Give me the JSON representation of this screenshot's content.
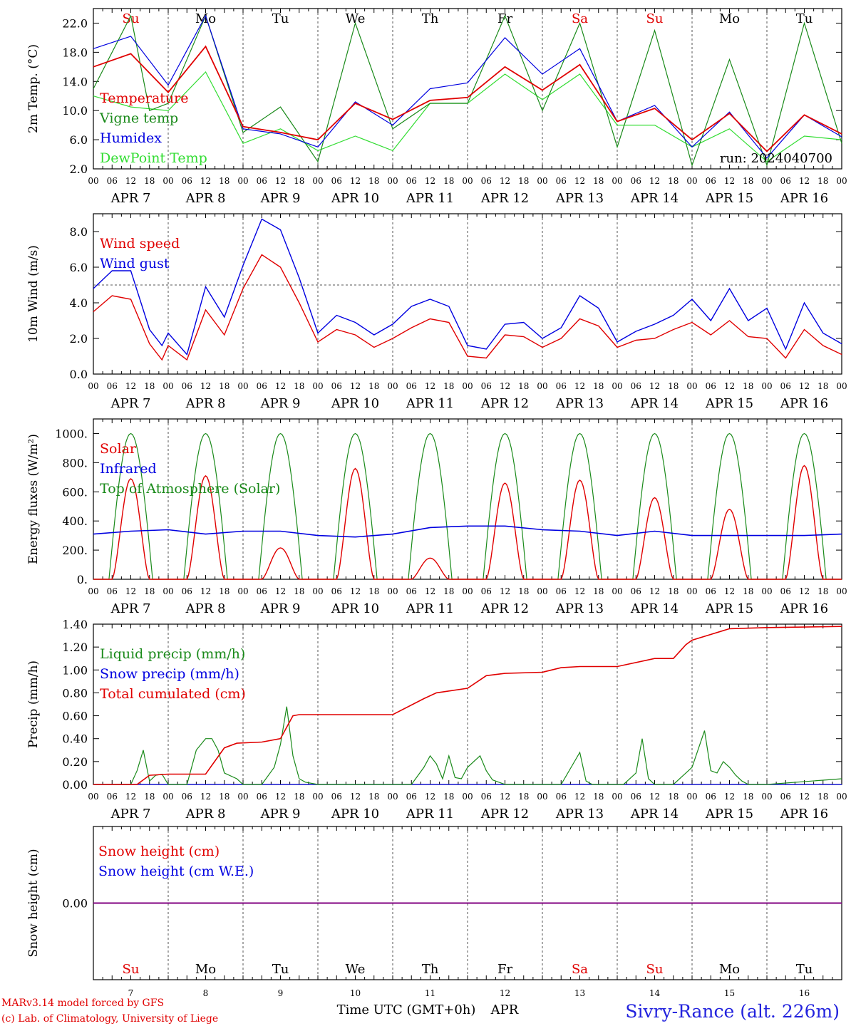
{
  "layout_x": [
    0,
    240
  ],
  "day_labels": [
    "Su",
    "Mo",
    "Tu",
    "We",
    "Th",
    "Fr",
    "Sa",
    "Su",
    "Mo",
    "Tu"
  ],
  "day_label_colors": [
    "#e00000",
    "#000000",
    "#000000",
    "#000000",
    "#000000",
    "#000000",
    "#e00000",
    "#e00000",
    "#000000",
    "#000000"
  ],
  "hour_ticks": [
    "00",
    "06",
    "12",
    "18"
  ],
  "end_tick": "00",
  "date_labels": [
    "APR  7",
    "APR  8",
    "APR  9",
    "APR 10",
    "APR 11",
    "APR 12",
    "APR 13",
    "APR 14",
    "APR 15",
    "APR 16"
  ],
  "bottom_day_numbers": [
    "7",
    "8",
    "9",
    "10",
    "11",
    "12",
    "13",
    "14",
    "15",
    "16"
  ],
  "footer": {
    "xlabel": "Time UTC (GMT+0h)",
    "xlabel_month": "APR",
    "credit_line1": "MARv3.14 model forced by GFS",
    "credit_line2": "(c) Lab. of Climatology, University of Liege",
    "station": "Sivry-Rance (alt. 226m)"
  },
  "colors": {
    "red": "#e00000",
    "darkgreen": "#1a8a1a",
    "blue": "#0000e0",
    "lightgreen": "#33dd33",
    "purple": "#800080"
  },
  "chart_data": [
    {
      "type": "line",
      "id": "temperature",
      "ylabel": "2m Temp. (°C)",
      "ylim": [
        2,
        24
      ],
      "yticks": [
        2.0,
        6.0,
        10.0,
        14.0,
        18.0,
        22.0
      ],
      "ytick_labels": [
        "2.0",
        "6.0",
        "10.0",
        "14.0",
        "18.0",
        "22.0"
      ],
      "annotation": "run: 2024040700",
      "x_unit": "hours since 2024-04-07 00 UTC",
      "series": [
        {
          "name": "Temperature",
          "color": "#e00000",
          "x": [
            0,
            12,
            24,
            36,
            48,
            60,
            72,
            84,
            96,
            108,
            120,
            132,
            144,
            156,
            168,
            180,
            192,
            204,
            216,
            228,
            240
          ],
          "values": [
            16.0,
            17.8,
            12.5,
            18.8,
            7.8,
            7.0,
            6.0,
            11.0,
            8.8,
            11.4,
            11.8,
            16.0,
            12.8,
            16.3,
            8.5,
            10.3,
            6.0,
            9.6,
            4.4,
            9.4,
            6.8
          ]
        },
        {
          "name": "Vigne temp",
          "color": "#1a8a1a",
          "x": [
            0,
            12,
            18,
            24,
            36,
            48,
            60,
            72,
            84,
            96,
            108,
            120,
            132,
            144,
            156,
            168,
            180,
            192,
            204,
            216,
            228,
            240
          ],
          "values": [
            13.0,
            23.0,
            10.0,
            11.0,
            23.0,
            7.0,
            10.5,
            3.0,
            22.0,
            7.5,
            11.0,
            11.0,
            23.0,
            10.0,
            22.0,
            5.0,
            21.0,
            2.5,
            17.0,
            2.5,
            22.0,
            5.5
          ]
        },
        {
          "name": "Humidex",
          "color": "#0000e0",
          "x": [
            0,
            12,
            24,
            36,
            48,
            60,
            72,
            84,
            96,
            108,
            120,
            132,
            144,
            156,
            168,
            180,
            192,
            204,
            216,
            228,
            240
          ],
          "values": [
            18.5,
            20.2,
            13.5,
            23.0,
            7.5,
            6.8,
            5.0,
            11.2,
            8.0,
            13.0,
            13.8,
            20.0,
            15.0,
            18.5,
            8.5,
            10.7,
            5.0,
            9.8,
            3.5,
            9.4,
            6.4
          ]
        },
        {
          "name": "DewPoint Temp",
          "color": "#33dd33",
          "x": [
            0,
            12,
            24,
            36,
            48,
            60,
            72,
            84,
            96,
            108,
            120,
            132,
            144,
            156,
            168,
            180,
            192,
            204,
            216,
            228,
            240
          ],
          "values": [
            12.0,
            10.5,
            10.0,
            15.3,
            5.5,
            7.5,
            4.5,
            6.5,
            4.5,
            11.0,
            11.0,
            15.0,
            11.5,
            15.0,
            8.0,
            8.0,
            5.0,
            7.5,
            3.0,
            6.5,
            6.0
          ]
        }
      ]
    },
    {
      "type": "line",
      "id": "wind",
      "ylabel": "10m Wind (m/s)",
      "ylim": [
        0,
        9
      ],
      "yticks": [
        0,
        2,
        4,
        6,
        8
      ],
      "ytick_labels": [
        "0.0",
        "2.0",
        "4.0",
        "6.0",
        "8.0"
      ],
      "reference_line": 5,
      "x_unit": "hours since 2024-04-07 00 UTC",
      "series": [
        {
          "name": "Wind speed",
          "color": "#e00000",
          "x": [
            0,
            6,
            12,
            18,
            22,
            24,
            30,
            36,
            42,
            48,
            54,
            60,
            66,
            72,
            78,
            84,
            90,
            96,
            102,
            108,
            114,
            120,
            126,
            132,
            138,
            144,
            150,
            156,
            162,
            168,
            174,
            180,
            186,
            192,
            198,
            204,
            210,
            216,
            222,
            228,
            234,
            240
          ],
          "values": [
            3.5,
            4.4,
            4.2,
            1.7,
            0.8,
            1.6,
            0.8,
            3.6,
            2.2,
            4.8,
            6.7,
            6.0,
            4.0,
            1.8,
            2.5,
            2.2,
            1.5,
            2.0,
            2.6,
            3.1,
            2.9,
            1.0,
            0.9,
            2.2,
            2.1,
            1.5,
            2.0,
            3.1,
            2.7,
            1.5,
            1.9,
            2.0,
            2.5,
            2.9,
            2.2,
            3.0,
            2.1,
            2.0,
            0.9,
            2.5,
            1.6,
            1.1
          ]
        },
        {
          "name": "Wind gust",
          "color": "#0000e0",
          "x": [
            0,
            6,
            12,
            18,
            22,
            24,
            30,
            36,
            42,
            48,
            54,
            60,
            66,
            72,
            78,
            84,
            90,
            96,
            102,
            108,
            114,
            120,
            126,
            132,
            138,
            144,
            150,
            156,
            162,
            168,
            174,
            180,
            186,
            192,
            198,
            204,
            210,
            216,
            222,
            228,
            234,
            240
          ],
          "values": [
            4.8,
            5.8,
            5.8,
            2.5,
            1.6,
            2.3,
            1.1,
            4.9,
            3.2,
            6.1,
            8.7,
            8.1,
            5.4,
            2.3,
            3.3,
            2.9,
            2.2,
            2.8,
            3.8,
            4.2,
            3.8,
            1.6,
            1.4,
            2.8,
            2.9,
            2.0,
            2.6,
            4.4,
            3.7,
            1.8,
            2.4,
            2.8,
            3.3,
            4.2,
            3.0,
            4.8,
            3.0,
            3.7,
            1.4,
            4.0,
            2.3,
            1.7
          ]
        }
      ]
    },
    {
      "type": "line",
      "id": "energy",
      "ylabel": "Energy fluxes (W/m²)",
      "ylim": [
        0,
        1100
      ],
      "yticks": [
        0,
        200,
        400,
        600,
        800,
        1000
      ],
      "ytick_labels": [
        "0.",
        "200.",
        "400.",
        "600.",
        "800.",
        "1000."
      ],
      "x_unit": "hours since 2024-04-07 00 UTC",
      "toa_peak": 1000,
      "solar_peaks": [
        690,
        710,
        215,
        760,
        145,
        660,
        680,
        560,
        480,
        780
      ],
      "infrared": {
        "x": [
          0,
          12,
          24,
          36,
          48,
          60,
          72,
          84,
          96,
          108,
          120,
          132,
          144,
          156,
          168,
          180,
          192,
          204,
          216,
          228,
          240
        ],
        "values": [
          310,
          330,
          340,
          310,
          330,
          330,
          300,
          290,
          310,
          355,
          365,
          365,
          340,
          330,
          300,
          330,
          300,
          300,
          300,
          300,
          310
        ]
      },
      "series_legend": [
        {
          "name": "Solar",
          "color": "#e00000"
        },
        {
          "name": "Infrared",
          "color": "#0000e0"
        },
        {
          "name": "Top of Atmosphere (Solar)",
          "color": "#1a8a1a"
        }
      ]
    },
    {
      "type": "line",
      "id": "precip",
      "ylabel": "Precip (mm/h)",
      "ylim": [
        0,
        1.4
      ],
      "yticks": [
        0,
        0.2,
        0.4,
        0.6,
        0.8,
        1.0,
        1.2,
        1.4
      ],
      "ytick_labels": [
        "0.00",
        "0.20",
        "0.40",
        "0.60",
        "0.80",
        "1.00",
        "1.20",
        "1.40"
      ],
      "x_unit": "hours since 2024-04-07 00 UTC",
      "series": [
        {
          "name": "Liquid precip (mm/h)",
          "color": "#1a8a1a",
          "x": [
            0,
            12,
            14,
            16,
            18,
            20,
            22,
            24,
            30,
            33,
            36,
            38,
            40,
            42,
            46,
            48,
            54,
            58,
            60,
            62,
            64,
            66,
            68,
            72,
            102,
            106,
            108,
            110,
            112,
            114,
            116,
            118,
            120,
            124,
            126,
            128,
            130,
            132,
            150,
            156,
            158,
            160,
            162,
            170,
            174,
            176,
            178,
            180,
            186,
            190,
            192,
            196,
            198,
            200,
            202,
            204,
            206,
            208,
            210,
            216,
            240
          ],
          "values": [
            0,
            0,
            0.12,
            0.3,
            0.03,
            0.08,
            0.09,
            0,
            0,
            0.3,
            0.4,
            0.4,
            0.3,
            0.1,
            0.05,
            0,
            0,
            0.15,
            0.35,
            0.68,
            0.25,
            0.05,
            0.02,
            0,
            0,
            0.15,
            0.25,
            0.18,
            0.05,
            0.25,
            0.06,
            0.05,
            0.15,
            0.25,
            0.12,
            0.04,
            0.02,
            0,
            0,
            0.28,
            0.03,
            0,
            0,
            0,
            0.1,
            0.4,
            0.05,
            0,
            0,
            0.1,
            0.15,
            0.47,
            0.12,
            0.1,
            0.2,
            0.15,
            0.08,
            0.03,
            0,
            0,
            0.05
          ]
        },
        {
          "name": "Snow precip (mm/h)",
          "color": "#0000e0",
          "x": [
            0,
            240
          ],
          "values": [
            0,
            0
          ]
        },
        {
          "name": "Total cumulated (cm)",
          "color": "#e00000",
          "x": [
            0,
            14,
            18,
            24,
            36,
            42,
            46,
            54,
            60,
            64,
            66,
            72,
            96,
            106,
            110,
            120,
            126,
            132,
            144,
            150,
            156,
            168,
            180,
            186,
            190,
            192,
            204,
            216,
            240
          ],
          "values": [
            0,
            0,
            0.08,
            0.09,
            0.09,
            0.32,
            0.36,
            0.37,
            0.4,
            0.6,
            0.61,
            0.61,
            0.61,
            0.75,
            0.8,
            0.84,
            0.95,
            0.97,
            0.98,
            1.02,
            1.03,
            1.03,
            1.1,
            1.1,
            1.22,
            1.26,
            1.36,
            1.37,
            1.38
          ]
        }
      ]
    },
    {
      "type": "line",
      "id": "snow",
      "ylabel": "Snow height (cm)",
      "ylim": [
        -1,
        1
      ],
      "yticks": [
        0
      ],
      "ytick_labels": [
        "0.00"
      ],
      "x_unit": "hours since 2024-04-07 00 UTC",
      "series": [
        {
          "name": "Snow height (cm)",
          "color": "#e00000",
          "x": [
            0,
            240
          ],
          "values": [
            0,
            0
          ]
        },
        {
          "name": "Snow height (cm W.E.)",
          "color": "#0000e0",
          "x": [
            0,
            240
          ],
          "values": [
            0,
            0
          ]
        }
      ]
    }
  ]
}
